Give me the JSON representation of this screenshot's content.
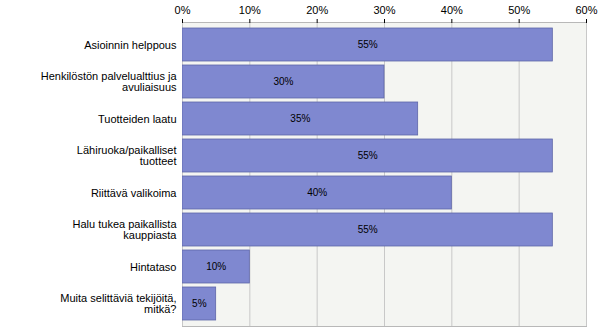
{
  "chart_data": {
    "type": "bar",
    "orientation": "horizontal",
    "categories": [
      "Asioinnin helppous",
      "Henkilöstön palvelualttius ja avuliaisuus",
      "Tuotteiden laatu",
      "Lähiruoka/paikalliset tuotteet",
      "Riittävä valikoima",
      "Halu tukea paikallista kauppiasta",
      "Hintataso",
      "Muita selittäviä tekijöitä, mitkä?"
    ],
    "values": [
      55,
      30,
      35,
      55,
      40,
      55,
      10,
      5
    ],
    "value_labels": [
      "55%",
      "30%",
      "35%",
      "55%",
      "40%",
      "55%",
      "10%",
      "5%"
    ],
    "color": "#7f88d0",
    "xlim": [
      0,
      60
    ],
    "xticks": [
      {
        "value": 0,
        "label": "0%"
      },
      {
        "value": 10,
        "label": "10%"
      },
      {
        "value": 20,
        "label": "20%"
      },
      {
        "value": 30,
        "label": "30%"
      },
      {
        "value": 40,
        "label": "40%"
      },
      {
        "value": 50,
        "label": "50%"
      },
      {
        "value": 60,
        "label": "60%"
      }
    ],
    "grid": true,
    "data_labels": true
  }
}
